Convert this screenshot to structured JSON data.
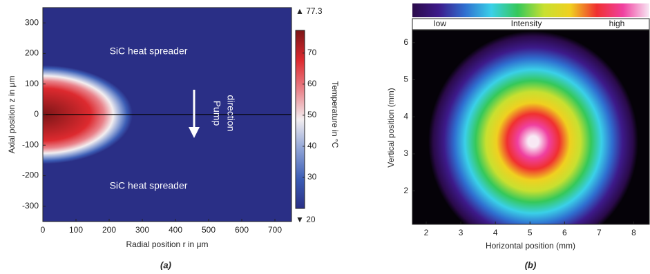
{
  "chart_data": [
    {
      "type": "heatmap",
      "xlabel": "Radial position r in μm",
      "ylabel": "Axial position z in μm",
      "xlim": [
        0,
        750
      ],
      "xticks": [
        0,
        100,
        200,
        300,
        400,
        500,
        600,
        700
      ],
      "ylim": [
        -350,
        350
      ],
      "yticks": [
        -300,
        -200,
        -100,
        0,
        100,
        200,
        300
      ],
      "colorbar_label": "Temperature in °C",
      "clim": [
        20,
        77.3
      ],
      "clim_labels": [
        "▼ 20",
        "▲ 77.3"
      ],
      "cticks": [
        30,
        40,
        50,
        60,
        70
      ],
      "colormap": [
        "#2a2f86",
        "#3c5db5",
        "#8ea3d6",
        "#f3eef0",
        "#e9828a",
        "#dd2a2f",
        "#7b1517"
      ],
      "annotations": [
        "SiC heat spreader",
        "SiC heat spreader",
        "Pump",
        "direction"
      ],
      "caption": "(a)"
    },
    {
      "type": "image",
      "xlabel": "Horizontal position (mm)",
      "ylabel": "Vertical position (mm)",
      "xlim": [
        1.6,
        8.45
      ],
      "xticks": [
        2,
        3,
        4,
        5,
        6,
        7,
        8
      ],
      "ylim": [
        1.1,
        6.33
      ],
      "yticks": [
        2,
        3,
        4,
        5,
        6
      ],
      "colorbar_labels": [
        "low",
        "Intensity",
        "high"
      ],
      "colormap": [
        "#2a0a4a",
        "#3d1a8a",
        "#2f6fd0",
        "#3ad0e8",
        "#35c85a",
        "#c8e030",
        "#f0d020",
        "#f03030",
        "#f040a0",
        "#f8e8f4"
      ],
      "caption": "(b)"
    }
  ]
}
